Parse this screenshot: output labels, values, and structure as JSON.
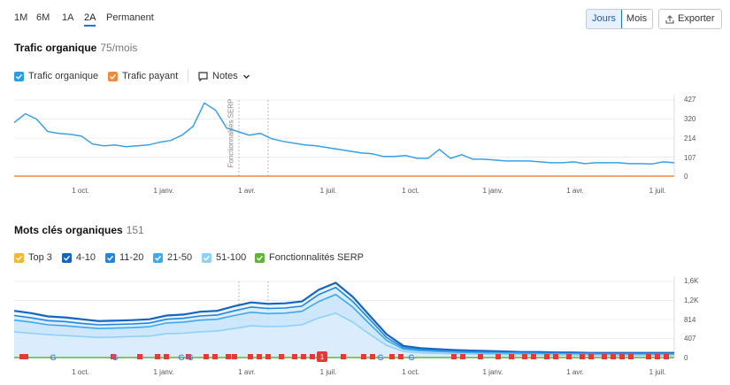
{
  "periods": [
    "1M",
    "6M",
    "1A",
    "2A",
    "Permanent"
  ],
  "active_period": "2A",
  "view_toggle": {
    "days": "Jours",
    "months": "Mois",
    "active": "Jours"
  },
  "export_label": "Exporter",
  "traffic_section": {
    "title": "Trafic organique",
    "value": "75/mois",
    "legend": [
      {
        "label": "Trafic organique",
        "color": "#2d9ce8",
        "checked": true
      },
      {
        "label": "Trafic payant",
        "color": "#f08a3c",
        "checked": true
      }
    ],
    "notes_label": "Notes",
    "annotation_label": "Fonctionnalités SERP",
    "y_ticks": [
      "427",
      "320",
      "214",
      "107",
      "0"
    ],
    "x_ticks": [
      "1 oct.",
      "1 janv.",
      "1 avr.",
      "1 juil.",
      "1 oct.",
      "1 janv.",
      "1 avr.",
      "1 juil."
    ]
  },
  "keywords_section": {
    "title": "Mots clés organiques",
    "value": "151",
    "legend": [
      {
        "label": "Top 3",
        "color": "#f5b731",
        "checked": true
      },
      {
        "label": "4-10",
        "color": "#1565c0",
        "checked": true
      },
      {
        "label": "11-20",
        "color": "#2186dc",
        "checked": true
      },
      {
        "label": "21-50",
        "color": "#3ea9ee",
        "checked": true
      },
      {
        "label": "51-100",
        "color": "#8fd0f8",
        "checked": true
      },
      {
        "label": "Fonctionnalités SERP",
        "color": "#5fb336",
        "checked": true
      }
    ],
    "y_ticks": [
      "1,6K",
      "1,2K",
      "814",
      "407",
      "0"
    ],
    "x_ticks": [
      "1 oct.",
      "1 janv.",
      "1 avr.",
      "1 juil.",
      "1 oct.",
      "1 janv.",
      "1 avr.",
      "1 juil."
    ],
    "marker_badge": "1",
    "google_marker": "G"
  },
  "chart_data": [
    {
      "type": "line",
      "title": "Trafic organique",
      "ylim": [
        0,
        427
      ],
      "x_ticks": [
        "1 oct.",
        "1 janv.",
        "1 avr.",
        "1 juil.",
        "1 oct.",
        "1 janv.",
        "1 avr.",
        "1 juil."
      ],
      "series": [
        {
          "name": "Trafic organique",
          "values": [
            300,
            350,
            320,
            250,
            240,
            235,
            225,
            180,
            170,
            175,
            165,
            170,
            175,
            190,
            200,
            230,
            280,
            410,
            370,
            270,
            250,
            230,
            240,
            210,
            195,
            185,
            175,
            170,
            160,
            150,
            140,
            130,
            125,
            110,
            110,
            115,
            100,
            100,
            150,
            100,
            120,
            95,
            95,
            90,
            85,
            85,
            85,
            80,
            75,
            75,
            80,
            70,
            75,
            75,
            75,
            70,
            70,
            68,
            80,
            75
          ]
        },
        {
          "name": "Trafic payant",
          "values": [
            0,
            0,
            0,
            0,
            0,
            0,
            0,
            0,
            0,
            0,
            0,
            0,
            0,
            0,
            0,
            0,
            0,
            0,
            0,
            0,
            0,
            0,
            0,
            0,
            0,
            0,
            0,
            0,
            0,
            0,
            0,
            0,
            0,
            0,
            0,
            0,
            0,
            0,
            0,
            0,
            0,
            0,
            0,
            0,
            0,
            0,
            0,
            0,
            0,
            0,
            0,
            0,
            0,
            0,
            0,
            0,
            0,
            0,
            0,
            0
          ]
        }
      ]
    },
    {
      "type": "area",
      "title": "Mots clés organiques",
      "ylim": [
        0,
        1628
      ],
      "x_ticks": [
        "1 oct.",
        "1 janv.",
        "1 avr.",
        "1 juil.",
        "1 oct.",
        "1 janv.",
        "1 avr.",
        "1 juil."
      ],
      "series": [
        {
          "name": "4-10",
          "values": [
            1000,
            950,
            880,
            860,
            820,
            780,
            790,
            800,
            820,
            900,
            920,
            980,
            1000,
            1100,
            1180,
            1150,
            1160,
            1200,
            1450,
            1600,
            1300,
            900,
            500,
            250,
            200,
            180,
            160,
            150,
            140,
            130,
            120,
            120,
            110,
            110,
            100,
            100,
            100,
            100,
            100,
            100
          ]
        },
        {
          "name": "11-20",
          "values": [
            900,
            850,
            790,
            770,
            730,
            700,
            710,
            720,
            740,
            820,
            840,
            890,
            910,
            1000,
            1080,
            1050,
            1060,
            1100,
            1350,
            1500,
            1200,
            820,
            430,
            210,
            170,
            150,
            135,
            125,
            115,
            110,
            100,
            100,
            95,
            95,
            90,
            85,
            85,
            85,
            85,
            85
          ]
        },
        {
          "name": "21-50",
          "values": [
            800,
            760,
            700,
            680,
            650,
            620,
            630,
            640,
            660,
            740,
            760,
            800,
            820,
            900,
            970,
            940,
            950,
            990,
            1200,
            1350,
            1080,
            720,
            370,
            180,
            145,
            130,
            115,
            105,
            100,
            95,
            90,
            85,
            80,
            80,
            75,
            70,
            70,
            70,
            70,
            70
          ]
        },
        {
          "name": "51-100",
          "values": [
            550,
            520,
            490,
            470,
            450,
            430,
            440,
            450,
            460,
            510,
            520,
            550,
            570,
            620,
            680,
            660,
            670,
            700,
            850,
            950,
            760,
            500,
            260,
            130,
            100,
            90,
            80,
            75,
            70,
            65,
            60,
            60,
            55,
            55,
            50,
            50,
            50,
            50,
            50,
            50
          ]
        }
      ]
    }
  ]
}
